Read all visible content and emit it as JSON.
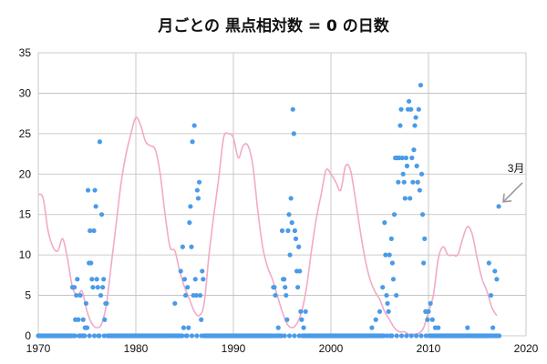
{
  "chart_data": {
    "type": "scatter",
    "title": "月ごとの 黒点相対数 = 0 の日数",
    "xlabel": "",
    "ylabel": "",
    "xlim": [
      1970,
      2020
    ],
    "ylim": [
      0,
      35
    ],
    "x_ticks": [
      1970,
      1980,
      1990,
      2000,
      2010,
      2020
    ],
    "y_ticks": [
      0,
      5,
      10,
      15,
      20,
      25,
      30,
      35
    ],
    "grid": true,
    "colors": {
      "points": "#4a9be8",
      "curve": "#f3a9c9",
      "annotation_arrow": "#9a9a9a",
      "grid": "#bdbdbd"
    },
    "annotation": {
      "text": "3月",
      "x": 2017.2,
      "y": 16
    },
    "series": [
      {
        "kind": "points",
        "points": [
          [
            1973.5,
            6
          ],
          [
            1973.7,
            6
          ],
          [
            1973.8,
            2
          ],
          [
            1973.9,
            5
          ],
          [
            1974.0,
            7
          ],
          [
            1974.1,
            2
          ],
          [
            1974.3,
            5
          ],
          [
            1974.6,
            2
          ],
          [
            1974.8,
            1
          ],
          [
            1974.9,
            4
          ],
          [
            1975.1,
            18
          ],
          [
            1975.2,
            9
          ],
          [
            1975.3,
            13
          ],
          [
            1975.4,
            9
          ],
          [
            1975.5,
            7
          ],
          [
            1975.6,
            6
          ],
          [
            1975.7,
            13
          ],
          [
            1975.8,
            18
          ],
          [
            1975.9,
            16
          ],
          [
            1976.0,
            7
          ],
          [
            1976.1,
            6
          ],
          [
            1976.3,
            24
          ],
          [
            1976.4,
            5
          ],
          [
            1976.5,
            15
          ],
          [
            1976.6,
            6
          ],
          [
            1976.7,
            7
          ],
          [
            1976.8,
            2
          ],
          [
            1976.9,
            4
          ],
          [
            1977.0,
            4
          ],
          [
            1975.0,
            1
          ],
          [
            1984.0,
            4
          ],
          [
            1984.6,
            8
          ],
          [
            1984.8,
            11
          ],
          [
            1985.0,
            7
          ],
          [
            1985.1,
            5
          ],
          [
            1985.3,
            6
          ],
          [
            1985.4,
            1
          ],
          [
            1985.5,
            14
          ],
          [
            1985.6,
            16
          ],
          [
            1985.7,
            11
          ],
          [
            1985.8,
            24
          ],
          [
            1985.9,
            5
          ],
          [
            1986.0,
            26
          ],
          [
            1986.1,
            7
          ],
          [
            1986.2,
            5
          ],
          [
            1986.3,
            18
          ],
          [
            1986.4,
            17
          ],
          [
            1986.5,
            19
          ],
          [
            1986.6,
            5
          ],
          [
            1986.7,
            2
          ],
          [
            1986.8,
            8
          ],
          [
            1986.9,
            7
          ],
          [
            1984.9,
            1
          ],
          [
            1994.2,
            6
          ],
          [
            1994.3,
            5
          ],
          [
            1994.6,
            1
          ],
          [
            1995.0,
            13
          ],
          [
            1995.1,
            7
          ],
          [
            1995.2,
            7
          ],
          [
            1995.3,
            6
          ],
          [
            1995.4,
            5
          ],
          [
            1995.5,
            2
          ],
          [
            1995.6,
            13
          ],
          [
            1995.7,
            15
          ],
          [
            1995.8,
            10
          ],
          [
            1995.9,
            17
          ],
          [
            1996.0,
            14
          ],
          [
            1996.1,
            28
          ],
          [
            1996.2,
            25
          ],
          [
            1996.3,
            13
          ],
          [
            1996.4,
            12
          ],
          [
            1996.5,
            8
          ],
          [
            1996.6,
            6
          ],
          [
            1996.7,
            11
          ],
          [
            1996.8,
            8
          ],
          [
            1996.9,
            3
          ],
          [
            1997.0,
            2
          ],
          [
            1997.2,
            1
          ],
          [
            1997.4,
            3
          ],
          [
            1994.1,
            6
          ],
          [
            2004.2,
            1
          ],
          [
            2004.6,
            2
          ],
          [
            2005.0,
            3
          ],
          [
            2005.3,
            6
          ],
          [
            2005.5,
            14
          ],
          [
            2005.6,
            10
          ],
          [
            2005.7,
            5
          ],
          [
            2005.8,
            4
          ],
          [
            2005.9,
            3
          ],
          [
            2006.0,
            10
          ],
          [
            2006.2,
            12
          ],
          [
            2006.3,
            9
          ],
          [
            2006.4,
            7
          ],
          [
            2006.5,
            15
          ],
          [
            2006.6,
            22
          ],
          [
            2006.7,
            5
          ],
          [
            2006.8,
            22
          ],
          [
            2006.9,
            19
          ],
          [
            2007.0,
            22
          ],
          [
            2007.1,
            26
          ],
          [
            2007.2,
            28
          ],
          [
            2007.3,
            22
          ],
          [
            2007.4,
            20
          ],
          [
            2007.5,
            19
          ],
          [
            2007.6,
            17
          ],
          [
            2007.7,
            22
          ],
          [
            2007.8,
            21
          ],
          [
            2007.9,
            28
          ],
          [
            2008.0,
            29
          ],
          [
            2008.1,
            17
          ],
          [
            2008.2,
            28
          ],
          [
            2008.3,
            22
          ],
          [
            2008.4,
            19
          ],
          [
            2008.5,
            23
          ],
          [
            2008.6,
            26
          ],
          [
            2008.7,
            27
          ],
          [
            2008.8,
            21
          ],
          [
            2008.9,
            19
          ],
          [
            2009.0,
            28
          ],
          [
            2009.1,
            18
          ],
          [
            2009.2,
            31
          ],
          [
            2009.3,
            20
          ],
          [
            2009.4,
            15
          ],
          [
            2009.5,
            9
          ],
          [
            2009.6,
            12
          ],
          [
            2009.7,
            3
          ],
          [
            2009.8,
            3
          ],
          [
            2009.9,
            2
          ],
          [
            2010.0,
            3
          ],
          [
            2010.2,
            4
          ],
          [
            2010.4,
            2
          ],
          [
            2010.7,
            1
          ],
          [
            2011.0,
            1
          ],
          [
            2014.0,
            1
          ],
          [
            2016.2,
            9
          ],
          [
            2016.4,
            5
          ],
          [
            2016.6,
            1
          ],
          [
            2016.8,
            8
          ],
          [
            2017.0,
            7
          ],
          [
            2017.2,
            16
          ]
        ]
      },
      {
        "kind": "curve",
        "points": [
          [
            1970.0,
            17.5
          ],
          [
            1970.5,
            17.0
          ],
          [
            1971.0,
            13.0
          ],
          [
            1971.5,
            11.0
          ],
          [
            1972.0,
            10.5
          ],
          [
            1972.5,
            12.0
          ],
          [
            1973.0,
            9.5
          ],
          [
            1973.5,
            6.0
          ],
          [
            1974.0,
            5.0
          ],
          [
            1974.5,
            5.5
          ],
          [
            1975.0,
            3.0
          ],
          [
            1975.5,
            1.5
          ],
          [
            1976.0,
            1.0
          ],
          [
            1976.5,
            1.5
          ],
          [
            1977.0,
            4.0
          ],
          [
            1977.5,
            9.0
          ],
          [
            1978.0,
            14.0
          ],
          [
            1978.5,
            19.0
          ],
          [
            1979.0,
            22.5
          ],
          [
            1979.5,
            25.0
          ],
          [
            1980.0,
            27.0
          ],
          [
            1980.5,
            26.0
          ],
          [
            1981.0,
            24.0
          ],
          [
            1981.5,
            23.5
          ],
          [
            1982.0,
            23.0
          ],
          [
            1982.5,
            20.0
          ],
          [
            1983.0,
            15.0
          ],
          [
            1983.5,
            11.0
          ],
          [
            1984.0,
            10.5
          ],
          [
            1984.5,
            8.0
          ],
          [
            1985.0,
            6.0
          ],
          [
            1985.5,
            4.5
          ],
          [
            1986.0,
            3.0
          ],
          [
            1986.5,
            2.5
          ],
          [
            1987.0,
            4.0
          ],
          [
            1987.5,
            10.0
          ],
          [
            1988.0,
            15.0
          ],
          [
            1988.5,
            19.5
          ],
          [
            1989.0,
            24.5
          ],
          [
            1989.5,
            25.0
          ],
          [
            1990.0,
            24.5
          ],
          [
            1990.5,
            22.0
          ],
          [
            1991.0,
            23.5
          ],
          [
            1991.5,
            23.5
          ],
          [
            1992.0,
            21.0
          ],
          [
            1992.5,
            15.5
          ],
          [
            1993.0,
            11.0
          ],
          [
            1993.5,
            8.5
          ],
          [
            1994.0,
            7.0
          ],
          [
            1994.5,
            5.0
          ],
          [
            1995.0,
            3.0
          ],
          [
            1995.5,
            1.5
          ],
          [
            1996.0,
            1.0
          ],
          [
            1996.5,
            1.5
          ],
          [
            1997.0,
            3.0
          ],
          [
            1997.5,
            6.0
          ],
          [
            1998.0,
            10.5
          ],
          [
            1998.5,
            14.5
          ],
          [
            1999.0,
            17.5
          ],
          [
            1999.5,
            20.5
          ],
          [
            2000.0,
            20.0
          ],
          [
            2000.5,
            19.0
          ],
          [
            2001.0,
            18.0
          ],
          [
            2001.5,
            21.0
          ],
          [
            2002.0,
            20.5
          ],
          [
            2002.5,
            17.0
          ],
          [
            2003.0,
            13.0
          ],
          [
            2003.5,
            9.5
          ],
          [
            2004.0,
            7.0
          ],
          [
            2004.5,
            5.5
          ],
          [
            2005.0,
            4.5
          ],
          [
            2005.5,
            3.0
          ],
          [
            2006.0,
            2.0
          ],
          [
            2006.5,
            1.0
          ],
          [
            2007.0,
            0.5
          ],
          [
            2007.5,
            0.5
          ],
          [
            2008.0,
            0.2
          ],
          [
            2008.5,
            0.2
          ],
          [
            2009.0,
            0.3
          ],
          [
            2009.5,
            1.0
          ],
          [
            2010.0,
            3.0
          ],
          [
            2010.5,
            5.0
          ],
          [
            2011.0,
            9.5
          ],
          [
            2011.5,
            11.0
          ],
          [
            2012.0,
            10.0
          ],
          [
            2012.5,
            10.0
          ],
          [
            2013.0,
            10.0
          ],
          [
            2013.5,
            12.0
          ],
          [
            2014.0,
            13.5
          ],
          [
            2014.5,
            12.5
          ],
          [
            2015.0,
            9.5
          ],
          [
            2015.5,
            7.0
          ],
          [
            2016.0,
            5.5
          ],
          [
            2016.5,
            3.5
          ],
          [
            2017.0,
            2.5
          ]
        ]
      }
    ]
  }
}
